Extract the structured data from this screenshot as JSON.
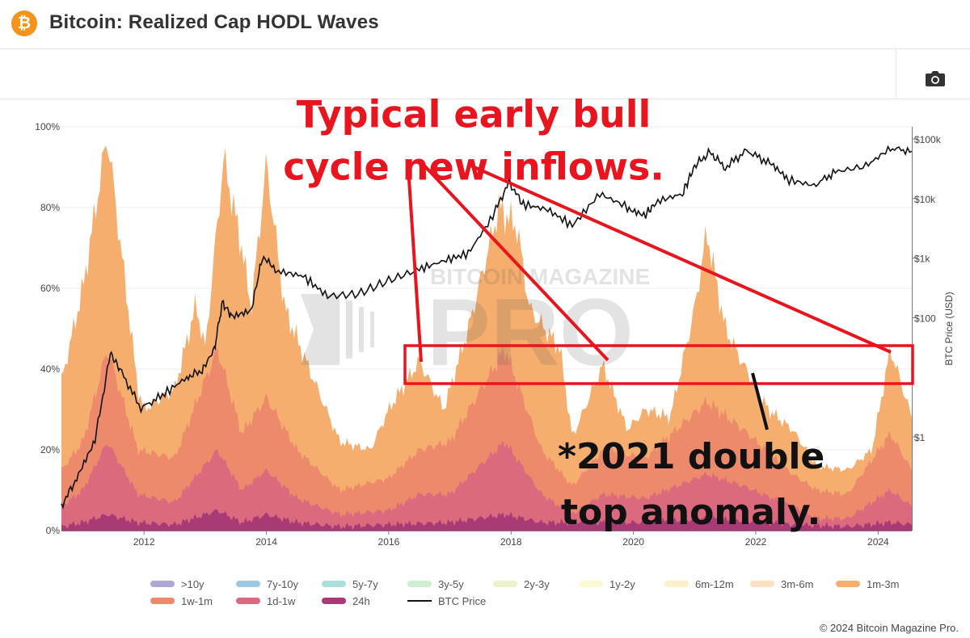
{
  "header": {
    "logo_glyph": "₿",
    "title": "Bitcoin: Realized Cap HODL Waves"
  },
  "toolbar": {
    "camera_icon": "camera-icon"
  },
  "watermark": {
    "line1": "BITCOIN MAGAZINE",
    "line2": "PRO"
  },
  "annotations": {
    "bull_line1": "Typical early bull",
    "bull_line2": "cycle new inflows.",
    "double_line1": "*2021 double",
    "double_line2": "top anomaly."
  },
  "footer": {
    "copyright": "© 2024 Bitcoin Magazine Pro."
  },
  "colors": {
    "btc_orange": "#f7931a",
    "annotation_red": "#e8141e",
    "price_line": "#111111"
  },
  "chart_data": {
    "type": "area",
    "title": "Bitcoin: Realized Cap HODL Waves",
    "stacked": true,
    "x_axis": {
      "range": [
        2010.65,
        2024.55
      ],
      "ticks": [
        "2012",
        "2014",
        "2016",
        "2018",
        "2020",
        "2022",
        "2024"
      ],
      "tick_values": [
        2012,
        2014,
        2016,
        2018,
        2020,
        2022,
        2024
      ]
    },
    "y_axis_left": {
      "range": [
        0,
        100
      ],
      "unit": "%",
      "ticks": [
        "0%",
        "20%",
        "40%",
        "60%",
        "80%",
        "100%"
      ],
      "tick_values": [
        0,
        20,
        40,
        60,
        80,
        100
      ]
    },
    "y_axis_right": {
      "label": "BTC Price (USD)",
      "scale": "log",
      "ticks": [
        "$1",
        "$100",
        "$1k",
        "$10k",
        "$100k"
      ],
      "tick_values": [
        1,
        100,
        1000,
        10000,
        100000
      ]
    },
    "grid": true,
    "legend_position": "bottom",
    "legend": [
      {
        "name": ">10y",
        "color": "#b0a6d6"
      },
      {
        "name": "7y-10y",
        "color": "#9dc7e3"
      },
      {
        "name": "5y-7y",
        "color": "#a9e0dc"
      },
      {
        "name": "3y-5y",
        "color": "#cdeed1"
      },
      {
        "name": "2y-3y",
        "color": "#eaf2cc"
      },
      {
        "name": "1y-2y",
        "color": "#fbf9d2"
      },
      {
        "name": "6m-12m",
        "color": "#fcefc9"
      },
      {
        "name": "3m-6m",
        "color": "#fbe1c2"
      },
      {
        "name": "1m-3m",
        "color": "#f6ae6f"
      },
      {
        "name": "1w-1m",
        "color": "#ee8a6c"
      },
      {
        "name": "1d-1w",
        "color": "#dc6a7e"
      },
      {
        "name": "24h",
        "color": "#a83a76"
      },
      {
        "name": "BTC Price",
        "color": "#111111"
      }
    ],
    "bands": [
      {
        "name": "24h",
        "color": "#a83a76",
        "points": [
          [
            2010.65,
            1
          ],
          [
            2011.0,
            2
          ],
          [
            2011.4,
            4
          ],
          [
            2011.9,
            2
          ],
          [
            2012.5,
            1.5
          ],
          [
            2013.2,
            5
          ],
          [
            2013.6,
            2
          ],
          [
            2014.0,
            4
          ],
          [
            2014.5,
            2
          ],
          [
            2015.2,
            1
          ],
          [
            2016.0,
            1.5
          ],
          [
            2017.0,
            2
          ],
          [
            2017.9,
            4
          ],
          [
            2018.5,
            2
          ],
          [
            2019.5,
            2
          ],
          [
            2020.2,
            2
          ],
          [
            2021.2,
            3
          ],
          [
            2021.8,
            2.5
          ],
          [
            2022.6,
            1.5
          ],
          [
            2023.5,
            1
          ],
          [
            2024.2,
            2
          ],
          [
            2024.55,
            1.5
          ]
        ]
      },
      {
        "name": "1d-1w",
        "color": "#dc6a7e",
        "points": [
          [
            2010.65,
            6
          ],
          [
            2011.0,
            10
          ],
          [
            2011.4,
            22
          ],
          [
            2011.9,
            9
          ],
          [
            2012.5,
            7
          ],
          [
            2013.2,
            20
          ],
          [
            2013.6,
            10
          ],
          [
            2014.0,
            15
          ],
          [
            2014.5,
            8
          ],
          [
            2015.2,
            4
          ],
          [
            2016.0,
            5
          ],
          [
            2016.5,
            9
          ],
          [
            2017.0,
            9
          ],
          [
            2017.9,
            22
          ],
          [
            2018.5,
            9
          ],
          [
            2019.0,
            4
          ],
          [
            2019.5,
            9
          ],
          [
            2020.2,
            8
          ],
          [
            2021.2,
            14
          ],
          [
            2021.8,
            11
          ],
          [
            2022.6,
            6
          ],
          [
            2023.0,
            3
          ],
          [
            2023.5,
            3
          ],
          [
            2024.2,
            10
          ],
          [
            2024.55,
            6
          ]
        ]
      },
      {
        "name": "1w-1m",
        "color": "#ee8a6c",
        "points": [
          [
            2010.65,
            15
          ],
          [
            2011.0,
            22
          ],
          [
            2011.4,
            45
          ],
          [
            2011.9,
            20
          ],
          [
            2012.5,
            18
          ],
          [
            2013.2,
            45
          ],
          [
            2013.6,
            24
          ],
          [
            2014.0,
            33
          ],
          [
            2014.5,
            20
          ],
          [
            2015.2,
            10
          ],
          [
            2016.0,
            13
          ],
          [
            2016.5,
            20
          ],
          [
            2017.0,
            22
          ],
          [
            2017.9,
            45
          ],
          [
            2018.5,
            20
          ],
          [
            2019.0,
            11
          ],
          [
            2019.5,
            20
          ],
          [
            2020.2,
            18
          ],
          [
            2021.2,
            32
          ],
          [
            2021.8,
            25
          ],
          [
            2022.6,
            14
          ],
          [
            2023.0,
            10
          ],
          [
            2023.5,
            9
          ],
          [
            2024.2,
            24
          ],
          [
            2024.55,
            15
          ]
        ]
      },
      {
        "name": "1m-3m",
        "color": "#f6ae6f",
        "points": [
          [
            2010.65,
            37
          ],
          [
            2011.0,
            60
          ],
          [
            2011.4,
            98
          ],
          [
            2011.9,
            35
          ],
          [
            2012.0,
            30
          ],
          [
            2012.5,
            35
          ],
          [
            2012.85,
            56
          ],
          [
            2013.0,
            45
          ],
          [
            2013.3,
            92
          ],
          [
            2013.6,
            70
          ],
          [
            2013.75,
            55
          ],
          [
            2014.0,
            91
          ],
          [
            2014.3,
            55
          ],
          [
            2014.7,
            40
          ],
          [
            2015.2,
            22
          ],
          [
            2015.7,
            20
          ],
          [
            2016.0,
            30
          ],
          [
            2016.5,
            42
          ],
          [
            2016.9,
            30
          ],
          [
            2017.3,
            50
          ],
          [
            2017.8,
            80
          ],
          [
            2018.1,
            75
          ],
          [
            2018.3,
            55
          ],
          [
            2018.8,
            45
          ],
          [
            2019.0,
            23
          ],
          [
            2019.5,
            41
          ],
          [
            2019.9,
            25
          ],
          [
            2020.2,
            30
          ],
          [
            2020.6,
            28
          ],
          [
            2021.0,
            55
          ],
          [
            2021.2,
            74
          ],
          [
            2021.5,
            50
          ],
          [
            2021.8,
            41
          ],
          [
            2022.2,
            30
          ],
          [
            2022.6,
            25
          ],
          [
            2023.0,
            16
          ],
          [
            2023.5,
            15
          ],
          [
            2023.9,
            20
          ],
          [
            2024.2,
            45
          ],
          [
            2024.55,
            28
          ]
        ]
      }
    ],
    "price_series": {
      "name": "BTC Price",
      "unit": "USD",
      "points": [
        [
          2010.65,
          0.07
        ],
        [
          2010.9,
          0.2
        ],
        [
          2011.2,
          0.9
        ],
        [
          2011.45,
          25
        ],
        [
          2011.6,
          14
        ],
        [
          2011.95,
          3
        ],
        [
          2012.3,
          5
        ],
        [
          2012.7,
          10
        ],
        [
          2012.95,
          13
        ],
        [
          2013.15,
          30
        ],
        [
          2013.28,
          180
        ],
        [
          2013.45,
          100
        ],
        [
          2013.75,
          130
        ],
        [
          2013.93,
          1000
        ],
        [
          2014.2,
          600
        ],
        [
          2014.6,
          500
        ],
        [
          2015.0,
          230
        ],
        [
          2015.5,
          250
        ],
        [
          2016.0,
          420
        ],
        [
          2016.5,
          650
        ],
        [
          2016.9,
          900
        ],
        [
          2017.3,
          1200
        ],
        [
          2017.7,
          5000
        ],
        [
          2017.96,
          19000
        ],
        [
          2018.2,
          8000
        ],
        [
          2018.6,
          6500
        ],
        [
          2019.0,
          3500
        ],
        [
          2019.45,
          12000
        ],
        [
          2019.9,
          7200
        ],
        [
          2020.2,
          5500
        ],
        [
          2020.4,
          9000
        ],
        [
          2020.8,
          12000
        ],
        [
          2021.0,
          35000
        ],
        [
          2021.25,
          60000
        ],
        [
          2021.5,
          33000
        ],
        [
          2021.85,
          64000
        ],
        [
          2022.2,
          40000
        ],
        [
          2022.5,
          21000
        ],
        [
          2022.95,
          16500
        ],
        [
          2023.3,
          28000
        ],
        [
          2023.8,
          35000
        ],
        [
          2024.2,
          70000
        ],
        [
          2024.55,
          62000
        ]
      ]
    }
  }
}
